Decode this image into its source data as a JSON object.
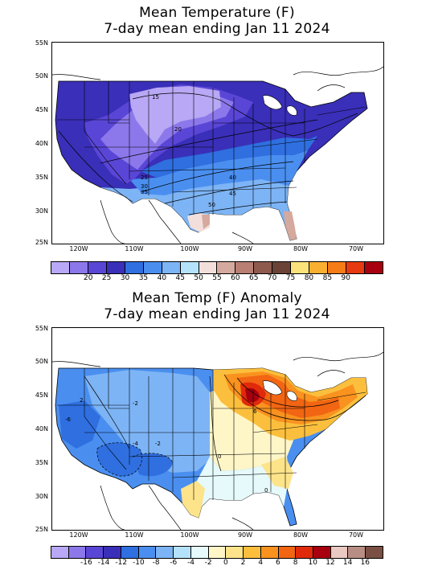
{
  "top": {
    "title_line1": "Mean Temperature (F)",
    "title_line2": "7-day mean ending Jan 11 2024",
    "lat_labels": [
      "55N",
      "50N",
      "45N",
      "40N",
      "35N",
      "30N",
      "25N"
    ],
    "lon_labels": [
      "120W",
      "110W",
      "100W",
      "90W",
      "80W",
      "70W"
    ],
    "contour_labels": [
      "15",
      "20",
      "25",
      "30",
      "35",
      "40",
      "45",
      "50"
    ],
    "colorbar": {
      "colors": [
        "#b8a8f5",
        "#8c78ea",
        "#5a46d6",
        "#3a2fb8",
        "#2f6fe0",
        "#4a8ff0",
        "#7db4f5",
        "#b4e2fa",
        "#f2dfdc",
        "#d6a99e",
        "#b87f72",
        "#8e5a4e",
        "#6b4236",
        "#fbe27a",
        "#f9b030",
        "#f57c17",
        "#e63a10",
        "#a8000e"
      ],
      "labels": [
        "20",
        "25",
        "30",
        "35",
        "40",
        "45",
        "50",
        "55",
        "60",
        "65",
        "70",
        "75",
        "80",
        "85",
        "90"
      ]
    }
  },
  "bottom": {
    "title_line1": "Mean Temp (F) Anomaly",
    "title_line2": "7-day mean ending Jan 11 2024",
    "lat_labels": [
      "55N",
      "50N",
      "45N",
      "40N",
      "35N",
      "30N",
      "25N"
    ],
    "lon_labels": [
      "120W",
      "110W",
      "100W",
      "90W",
      "80W",
      "70W"
    ],
    "contour_labels": [
      "2",
      "-2",
      "-6",
      "-4",
      "-2",
      "0",
      "0",
      "6"
    ],
    "colorbar": {
      "colors": [
        "#b8a8f5",
        "#8c78ea",
        "#5a46d6",
        "#3a2fb8",
        "#2f6fe0",
        "#4a8ff0",
        "#7db4f5",
        "#b4e2fa",
        "#e6f9fb",
        "#fff6c8",
        "#fde38a",
        "#fbbf3d",
        "#f9921f",
        "#f26512",
        "#e02a0a",
        "#a8000e",
        "#e9c9c2",
        "#b88e84",
        "#7a5045"
      ],
      "labels": [
        "-16",
        "-14",
        "-12",
        "-10",
        "-8",
        "-6",
        "-4",
        "-2",
        "0",
        "2",
        "4",
        "6",
        "8",
        "10",
        "12",
        "14",
        "16"
      ]
    }
  }
}
